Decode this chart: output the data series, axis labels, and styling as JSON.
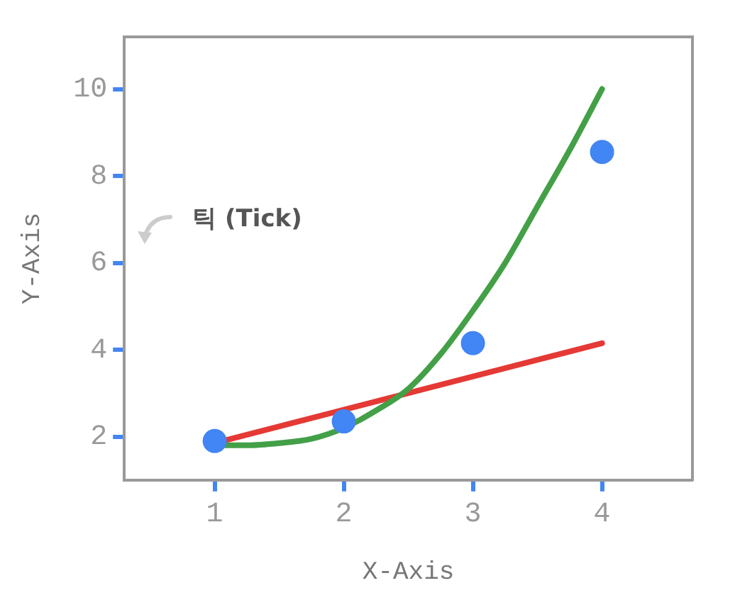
{
  "chart_data": {
    "type": "scatter",
    "xlabel": "X-Axis",
    "ylabel": "Y-Axis",
    "x": [
      1,
      2,
      3,
      4
    ],
    "xlim": [
      0.3,
      4.7
    ],
    "xticks": [
      1,
      2,
      3,
      4
    ],
    "ylim": [
      1,
      11.2
    ],
    "yticks": [
      2,
      4,
      6,
      8,
      10
    ],
    "grid": false,
    "legend": false,
    "annotations": [
      "틱 (Tick)"
    ],
    "series": [
      {
        "marker": "circle",
        "color": "#4285f4",
        "values": [
          1.9,
          2.35,
          4.15,
          8.55
        ]
      },
      {
        "type": "line",
        "color": "#43a047",
        "x": [
          1,
          1.25,
          1.5,
          1.75,
          2,
          2.25,
          2.5,
          2.75,
          3,
          3.25,
          3.5,
          3.75,
          4
        ],
        "values": [
          1.8,
          1.8,
          1.85,
          1.95,
          2.2,
          2.6,
          3.1,
          3.9,
          4.9,
          6,
          7.3,
          8.6,
          10
        ]
      },
      {
        "type": "line",
        "color": "#e53935",
        "x": [
          1,
          4
        ],
        "values": [
          1.85,
          4.15
        ]
      }
    ]
  }
}
